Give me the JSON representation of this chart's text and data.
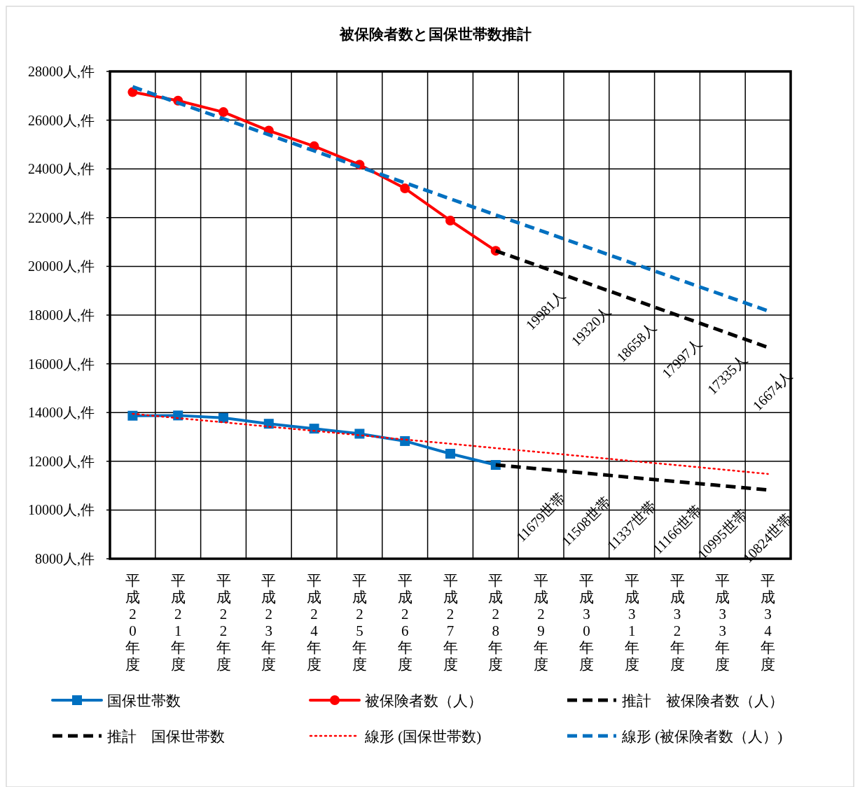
{
  "chart_data": {
    "type": "line",
    "title": "被保険者数と国保世帯数推計",
    "categories": [
      "平成20年度",
      "平成21年度",
      "平成22年度",
      "平成23年度",
      "平成24年度",
      "平成25年度",
      "平成26年度",
      "平成27年度",
      "平成28年度",
      "平成29年度",
      "平成30年度",
      "平成31年度",
      "平成32年度",
      "平成33年度",
      "平成34年度"
    ],
    "ylim": [
      8000,
      28000
    ],
    "yticks": [
      {
        "value": 8000,
        "label": "8000人,件"
      },
      {
        "value": 10000,
        "label": "10000人,件"
      },
      {
        "value": 12000,
        "label": "12000人,件"
      },
      {
        "value": 14000,
        "label": "14000人,件"
      },
      {
        "value": 16000,
        "label": "16000人,件"
      },
      {
        "value": 18000,
        "label": "18000人,件"
      },
      {
        "value": 20000,
        "label": "20000人,件"
      },
      {
        "value": 22000,
        "label": "22000人,件"
      },
      {
        "value": 24000,
        "label": "24000人,件"
      },
      {
        "value": 26000,
        "label": "26000人,件"
      },
      {
        "value": 28000,
        "label": "28000人,件"
      }
    ],
    "grid": true,
    "legend": "bottom",
    "series": [
      {
        "name": "国保世帯数",
        "color": "#0070c0",
        "marker": "square",
        "line_style": "solid",
        "values": [
          13870,
          13880,
          13780,
          13540,
          13340,
          13130,
          12830,
          12310,
          11850,
          null,
          null,
          null,
          null,
          null,
          null
        ]
      },
      {
        "name": "被保険者数（人）",
        "color": "#ff0000",
        "marker": "circle",
        "line_style": "solid",
        "values": [
          27150,
          26800,
          26330,
          25570,
          24930,
          24170,
          23200,
          21880,
          20640,
          null,
          null,
          null,
          null,
          null,
          null
        ]
      },
      {
        "name": "推計　被保険者数（人）",
        "color": "#000000",
        "marker": "none",
        "line_style": "dashed",
        "values": [
          null,
          null,
          null,
          null,
          null,
          null,
          null,
          null,
          20640,
          19981,
          19320,
          18658,
          17997,
          17335,
          16674
        ],
        "value_labels": [
          null,
          null,
          null,
          null,
          null,
          null,
          null,
          null,
          null,
          "19981人",
          "19320人",
          "18658人",
          "17997人",
          "17335人",
          "16674人"
        ]
      },
      {
        "name": "推計　国保世帯数",
        "color": "#000000",
        "marker": "none",
        "line_style": "dashed",
        "values": [
          null,
          null,
          null,
          null,
          null,
          null,
          null,
          null,
          11850,
          11679,
          11508,
          11337,
          11166,
          10995,
          10824
        ],
        "value_labels": [
          null,
          null,
          null,
          null,
          null,
          null,
          null,
          null,
          null,
          "11679世帯",
          "11508世帯",
          "11337世帯",
          "11166世帯",
          "10995世帯",
          "10824世帯"
        ]
      },
      {
        "name": "線形 (国保世帯数)",
        "color": "#ff0000",
        "marker": "none",
        "line_style": "dotted",
        "values": [
          13950,
          13770,
          13600,
          13420,
          13250,
          13070,
          12890,
          12720,
          12540,
          12370,
          12190,
          12010,
          11840,
          11660,
          11480
        ]
      },
      {
        "name": "線形 (被保険者数（人）)",
        "color": "#0070c0",
        "marker": "none",
        "line_style": "dashed",
        "values": [
          27370,
          26710,
          26060,
          25400,
          24740,
          24080,
          23430,
          22770,
          22110,
          21460,
          20800,
          20140,
          19480,
          18830,
          18170
        ]
      }
    ]
  }
}
